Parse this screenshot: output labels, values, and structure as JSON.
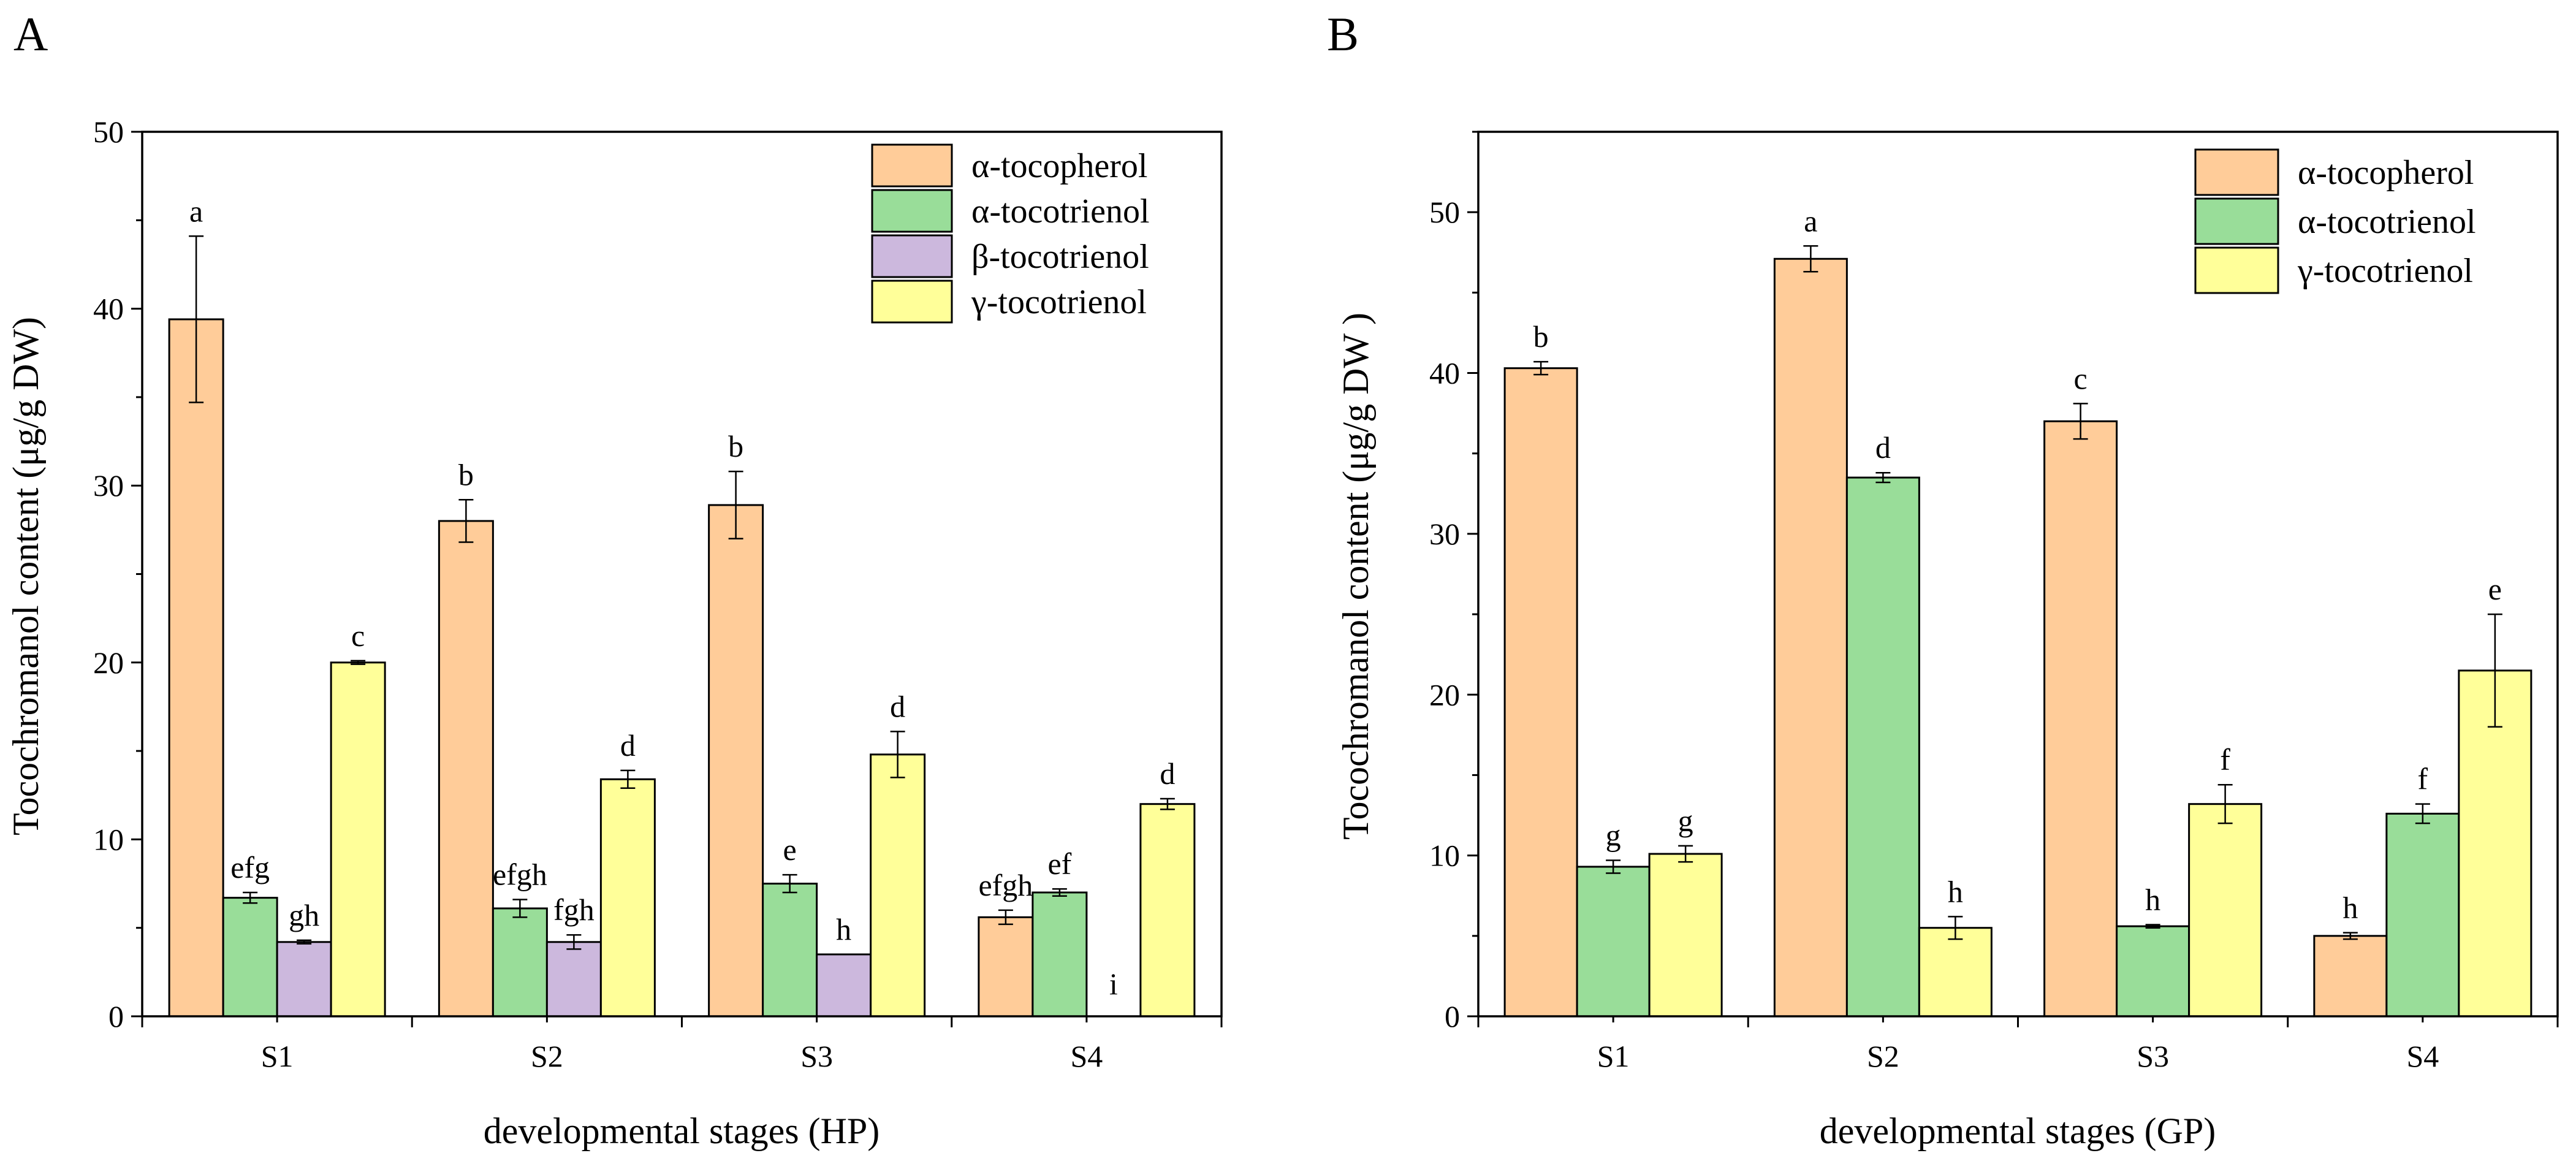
{
  "figure": {
    "panels": [
      "A",
      "B"
    ]
  },
  "chart_data": [
    {
      "panel": "A",
      "type": "bar",
      "xlabel": "developmental stages (HP)",
      "ylabel": "Tocochromanol content (μg/g DW)",
      "ylim": [
        0,
        50
      ],
      "yticks": [
        0,
        10,
        20,
        30,
        40,
        50
      ],
      "categories": [
        "S1",
        "S2",
        "S3",
        "S4"
      ],
      "legend": "top-right",
      "grid": false,
      "series": [
        {
          "name": "α-tocopherol",
          "color": "#FFCC99",
          "values": [
            39.4,
            28.0,
            28.9,
            5.6
          ],
          "errors": [
            4.7,
            1.2,
            1.9,
            0.4
          ],
          "letters": [
            "a",
            "b",
            "b",
            "efgh"
          ]
        },
        {
          "name": "α-tocotrienol",
          "color": "#99DD99",
          "values": [
            6.7,
            6.1,
            7.5,
            7.0
          ],
          "errors": [
            0.3,
            0.5,
            0.5,
            0.2
          ],
          "letters": [
            "efg",
            "efgh",
            "e",
            "ef"
          ]
        },
        {
          "name": "β-tocotrienol",
          "color": "#CCB8DD",
          "values": [
            4.2,
            4.2,
            3.5,
            0
          ],
          "errors": [
            0.1,
            0.4,
            0.0,
            0
          ],
          "letters": [
            "gh",
            "fgh",
            "h",
            "i"
          ]
        },
        {
          "name": "γ-tocotrienol",
          "color": "#FFFF99",
          "values": [
            20.0,
            13.4,
            14.8,
            12.0
          ],
          "errors": [
            0.1,
            0.5,
            1.3,
            0.3
          ],
          "letters": [
            "c",
            "d",
            "d",
            "d"
          ]
        }
      ]
    },
    {
      "panel": "B",
      "type": "bar",
      "xlabel": "developmental stages (GP)",
      "ylabel": "Tocochromanol content (μg/g  DW )",
      "ylim": [
        0,
        55
      ],
      "yticks": [
        0,
        10,
        20,
        30,
        40,
        50
      ],
      "categories": [
        "S1",
        "S2",
        "S3",
        "S4"
      ],
      "legend": "top-right",
      "grid": false,
      "series": [
        {
          "name": "α-tocopherol",
          "color": "#FFCC99",
          "values": [
            40.3,
            47.1,
            37.0,
            5.0
          ],
          "errors": [
            0.4,
            0.8,
            1.1,
            0.2
          ],
          "letters": [
            "b",
            "a",
            "c",
            "h"
          ]
        },
        {
          "name": "α-tocotrienol",
          "color": "#99DD99",
          "values": [
            9.3,
            33.5,
            5.6,
            12.6
          ],
          "errors": [
            0.4,
            0.3,
            0.1,
            0.6
          ],
          "letters": [
            "g",
            "d",
            "h",
            "f"
          ]
        },
        {
          "name": "γ-tocotrienol",
          "color": "#FFFF99",
          "values": [
            10.1,
            5.5,
            13.2,
            21.5
          ],
          "errors": [
            0.5,
            0.7,
            1.2,
            3.5
          ],
          "letters": [
            "g",
            "h",
            "f",
            "e"
          ]
        }
      ]
    }
  ]
}
